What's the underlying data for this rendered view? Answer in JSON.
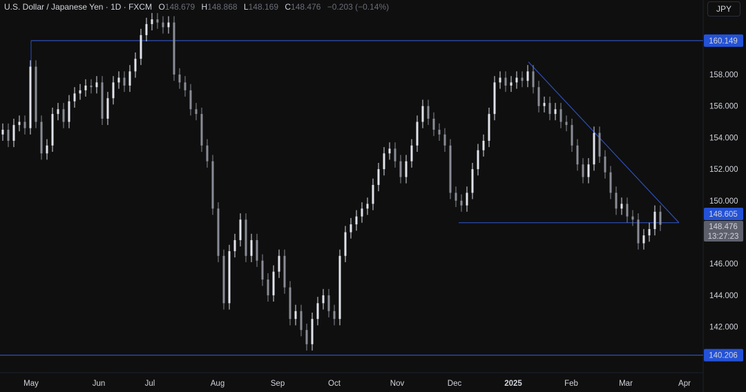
{
  "header": {
    "title": "U.S. Dollar / Japanese Yen · 1D · FXCM",
    "open_label": "O",
    "open": "148.679",
    "high_label": "H",
    "high": "148.868",
    "low_label": "L",
    "low": "148.169",
    "close_label": "C",
    "close": "148.476",
    "change": "−0.203 (−0.14%)",
    "currency_button": "JPY"
  },
  "chart_data": {
    "type": "candlestick",
    "title": "U.S. Dollar / Japanese Yen · 1D · FXCM",
    "colors": {
      "up": "#e0e3eb",
      "down": "#8a8d96",
      "lines": "#2f4fb8",
      "label_blue": "#2452d6",
      "label_gray": "#5d606b",
      "background": "#0f0f0f"
    },
    "y_ticks": [
      "158.000",
      "156.000",
      "154.000",
      "152.000",
      "150.000",
      "146.000",
      "144.000",
      "142.000"
    ],
    "y_tick_values": [
      158,
      156,
      154,
      152,
      150,
      146,
      144,
      142
    ],
    "ylim": [
      139.6,
      162.4
    ],
    "x_ticks": [
      "May",
      "Jun",
      "Jul",
      "Aug",
      "Sep",
      "Oct",
      "Nov",
      "Dec",
      "2025",
      "Feb",
      "Mar",
      "Apr"
    ],
    "x_range": [
      "2024-04-22",
      "2025-04-08"
    ],
    "closes": [
      154.5,
      153.8,
      154.8,
      155,
      154.6,
      158.5,
      155,
      153,
      153.5,
      155.5,
      155.8,
      155,
      156.3,
      156.8,
      157,
      157.3,
      157.2,
      157.5,
      155.2,
      156.5,
      157.5,
      157.8,
      157.3,
      158.2,
      159,
      160.5,
      161.2,
      161.5,
      161.3,
      161,
      161.3,
      158,
      157.5,
      157,
      155.8,
      155.5,
      153.5,
      152.5,
      149.5,
      146.5,
      143.5,
      146.8,
      147.5,
      148.8,
      146.5,
      147.5,
      146.2,
      145,
      144,
      145.5,
      146.5,
      144.5,
      142.5,
      143,
      141.8,
      140.9,
      142.5,
      143.5,
      144,
      143,
      142.5,
      146.5,
      148,
      148.5,
      149,
      149.5,
      149.8,
      151,
      152,
      153,
      153.3,
      152.5,
      151.5,
      152.5,
      153.5,
      155,
      156,
      155.2,
      154.5,
      154.2,
      153.5,
      150.5,
      150,
      149.7,
      150.5,
      152,
      153.2,
      153.8,
      155.5,
      157.5,
      157.8,
      157.3,
      157.5,
      157.8,
      157.6,
      158.2,
      157.2,
      156,
      156.2,
      155.5,
      155.8,
      155,
      154.8,
      153.5,
      152.3,
      151.5,
      152.3,
      154.3,
      152.8,
      151.8,
      150.5,
      149.5,
      149.8,
      149,
      148.8,
      147.3,
      147.8,
      148.2,
      149.3,
      148.476
    ],
    "horizontal_levels": [
      {
        "value": 160.149,
        "label": "160.149"
      },
      {
        "value": 148.605,
        "label": "148.605"
      },
      {
        "value": 140.206,
        "label": "140.206"
      }
    ],
    "trendline": {
      "from": [
        158.8,
        "2025-01-10"
      ],
      "to": [
        148.605,
        "2025-03-27"
      ]
    },
    "last_price": {
      "value": 148.476,
      "label": "148.476",
      "countdown": "13:27:23"
    }
  }
}
